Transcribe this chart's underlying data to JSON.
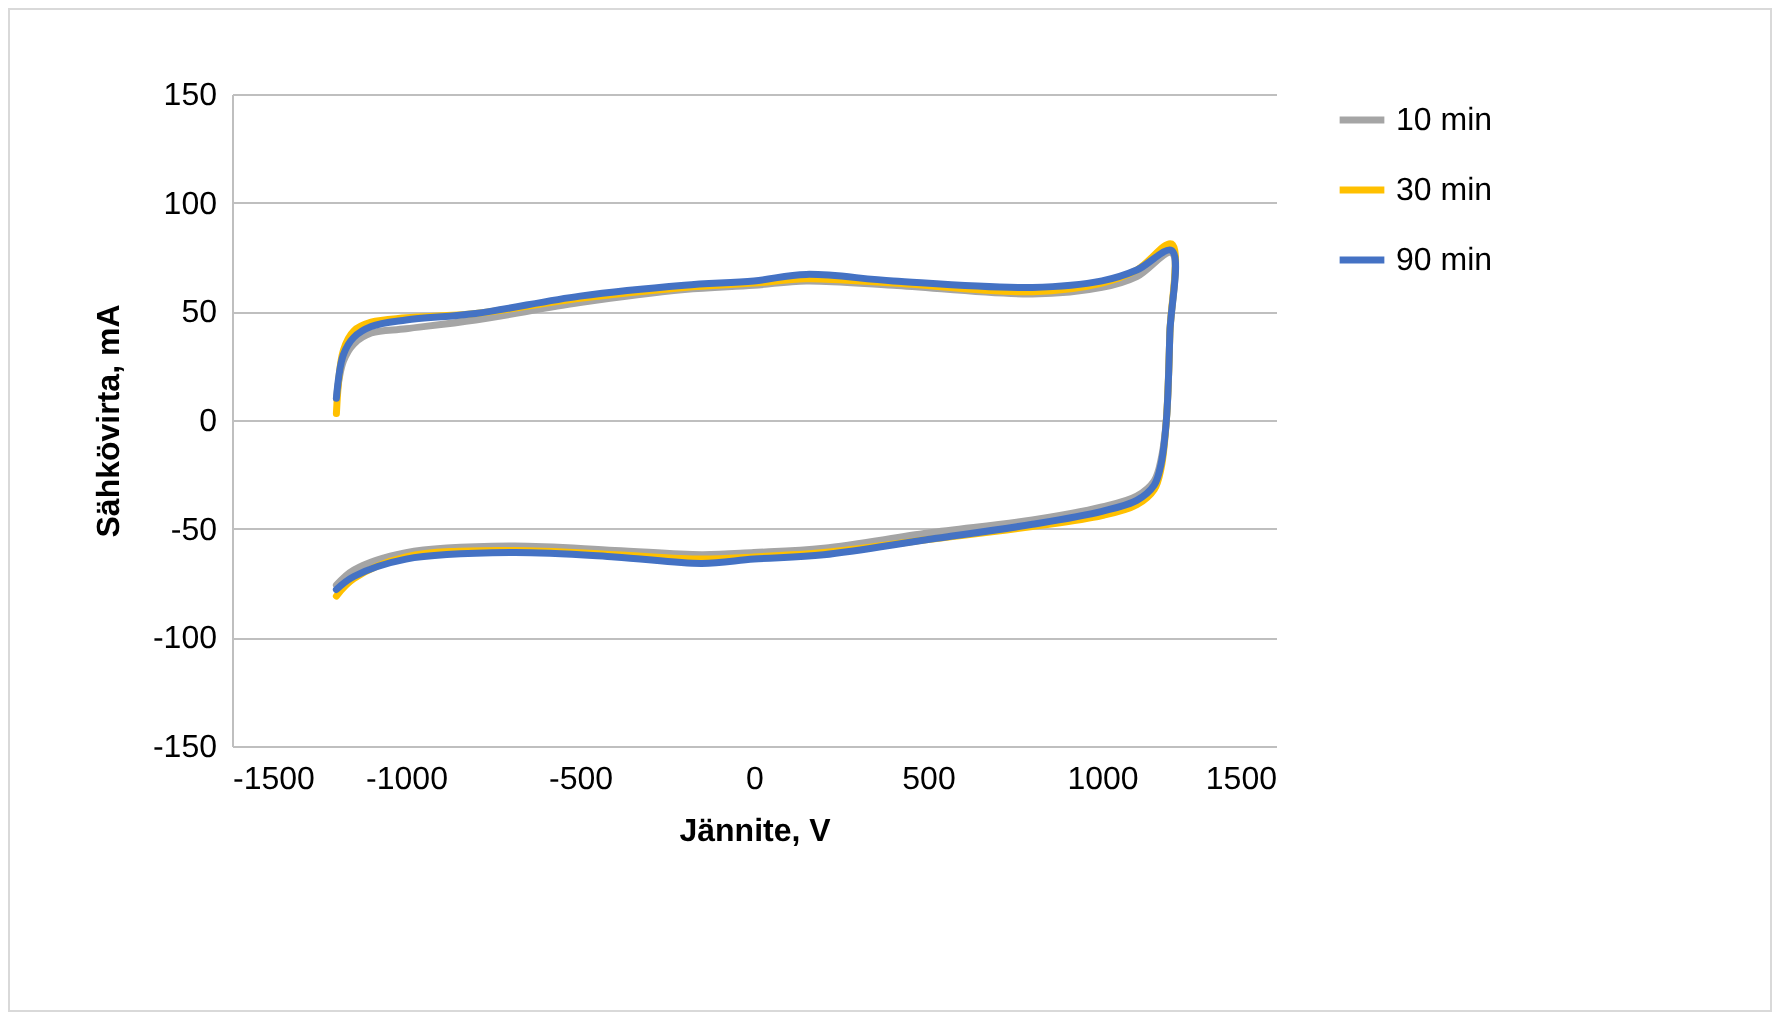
{
  "chart_data": {
    "type": "line",
    "xlabel": "Jännite, V",
    "ylabel": "Sähkövirta, mA",
    "xlim": [
      -1500,
      1500
    ],
    "xticks": [
      -1500,
      -1000,
      -500,
      0,
      500,
      1000,
      1500
    ],
    "ylim": [
      -150,
      150
    ],
    "yticks": [
      -150,
      -100,
      -50,
      0,
      50,
      100,
      150
    ],
    "grid": "y",
    "legend": "right",
    "marker": "none",
    "line_style": "solid",
    "series": [
      {
        "name": "10 min",
        "color": "#a5a5a5",
        "x": [
          -1200,
          -1180,
          -1150,
          -1100,
          -1000,
          -800,
          -500,
          -200,
          0,
          150,
          400,
          800,
          1000,
          1100,
          1200,
          1195,
          1185,
          1170,
          1150,
          1100,
          1000,
          800,
          500,
          200,
          0,
          -150,
          -400,
          -700,
          -1000,
          -1150,
          -1200
        ],
        "values": [
          10,
          27,
          35,
          40,
          42,
          46,
          54,
          60,
          62,
          64,
          62,
          58,
          61,
          66,
          77,
          40,
          0,
          -18,
          -28,
          -35,
          -40,
          -46,
          -52,
          -59,
          -61,
          -62,
          -60,
          -58,
          -61,
          -69,
          -76
        ]
      },
      {
        "name": "30 min",
        "color": "#ffc000",
        "x": [
          -1200,
          -1180,
          -1150,
          -1100,
          -1000,
          -800,
          -500,
          -200,
          0,
          150,
          400,
          800,
          1000,
          1100,
          1200,
          1195,
          1185,
          1170,
          1150,
          1100,
          1000,
          800,
          500,
          200,
          0,
          -150,
          -400,
          -700,
          -1000,
          -1150,
          -1200
        ],
        "values": [
          3,
          32,
          41,
          45,
          47,
          49,
          56,
          61,
          63,
          65,
          63,
          59,
          63,
          69,
          81,
          40,
          0,
          -22,
          -32,
          -39,
          -44,
          -49,
          -55,
          -61,
          -63,
          -64,
          -62,
          -60,
          -63,
          -73,
          -81
        ]
      },
      {
        "name": "90 min",
        "color": "#4472c4",
        "x": [
          -1200,
          -1180,
          -1150,
          -1100,
          -1000,
          -800,
          -500,
          -200,
          0,
          150,
          400,
          800,
          1000,
          1100,
          1200,
          1195,
          1185,
          1170,
          1150,
          1100,
          1000,
          800,
          500,
          200,
          0,
          -150,
          -400,
          -700,
          -1000,
          -1150,
          -1200
        ],
        "values": [
          10,
          30,
          38,
          43,
          46,
          49,
          57,
          62,
          64,
          67,
          64,
          61,
          64,
          69,
          78,
          40,
          0,
          -20,
          -30,
          -37,
          -42,
          -48,
          -55,
          -62,
          -64,
          -66,
          -63,
          -61,
          -64,
          -72,
          -78
        ]
      }
    ]
  }
}
